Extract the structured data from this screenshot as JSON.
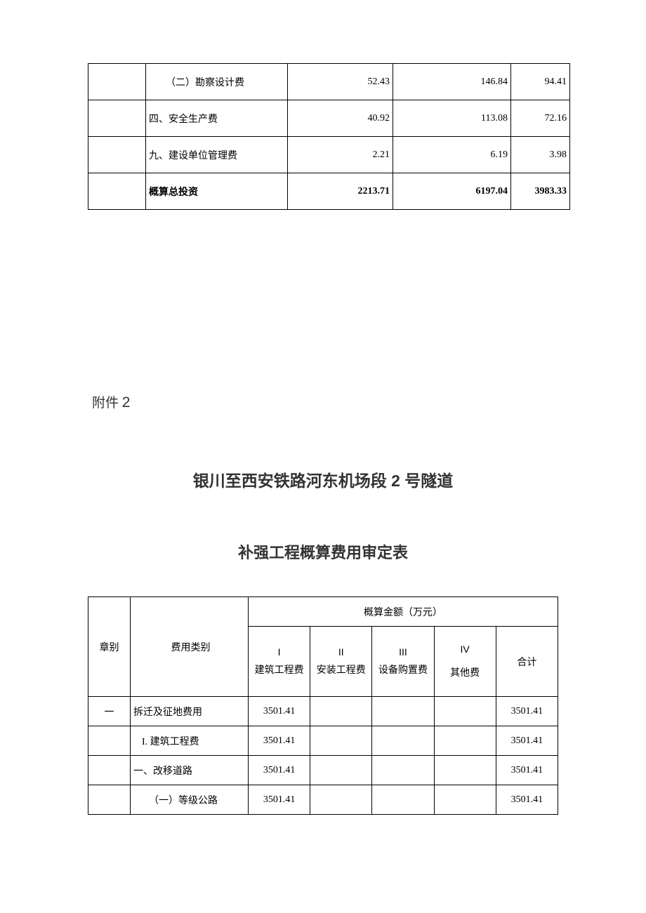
{
  "table1": {
    "columns": [
      "c0",
      "c1",
      "c2",
      "c3",
      "c4"
    ],
    "rows": [
      {
        "c0": "",
        "c1": "（二）勘察设计费",
        "c2": "52.43",
        "c3": "146.84",
        "c4": "94.41",
        "indent": 2,
        "bold": false
      },
      {
        "c0": "",
        "c1": "四、安全生产费",
        "c2": "40.92",
        "c3": "113.08",
        "c4": "72.16",
        "indent": 0,
        "bold": false
      },
      {
        "c0": "",
        "c1": "九、建设单位管理费",
        "c2": "2.21",
        "c3": "6.19",
        "c4": "3.98",
        "indent": 0,
        "bold": false
      },
      {
        "c0": "",
        "c1": "概算总投资",
        "c2": "2213.71",
        "c3": "6197.04",
        "c4": "3983.33",
        "indent": 0,
        "bold": true
      }
    ]
  },
  "attachment_label_prefix": "附件",
  "attachment_label_num": "2",
  "title_line1_a": "银川至西安铁路河东机场段",
  "title_line1_num": "2",
  "title_line1_b": "号隧道",
  "title_line2": "补强工程概算费用审定表",
  "table2": {
    "header": {
      "chap": "章别",
      "fee": "费用类别",
      "group": "概算金额（万元）",
      "col_i_top": "I",
      "col_i_bot": "建筑工程费",
      "col_ii_top": "II",
      "col_ii_bot": "安装工程费",
      "col_iii_top": "III",
      "col_iii_bot": "设备购置费",
      "col_iv_top": "IV",
      "col_iv_bot": "其他费",
      "total": "合计"
    },
    "rows": [
      {
        "chap": "一",
        "fee": "拆迁及征地费用",
        "v1": "3501.41",
        "v2": "",
        "v3": "",
        "v4": "",
        "tot": "3501.41",
        "indent": 0
      },
      {
        "chap": "",
        "fee": "I. 建筑工程费",
        "v1": "3501.41",
        "v2": "",
        "v3": "",
        "v4": "",
        "tot": "3501.41",
        "indent": 1
      },
      {
        "chap": "",
        "fee": "一、改移道路",
        "v1": "3501.41",
        "v2": "",
        "v3": "",
        "v4": "",
        "tot": "3501.41",
        "indent": 0
      },
      {
        "chap": "",
        "fee": "（一）等级公路",
        "v1": "3501.41",
        "v2": "",
        "v3": "",
        "v4": "",
        "tot": "3501.41",
        "indent": 2
      }
    ]
  }
}
